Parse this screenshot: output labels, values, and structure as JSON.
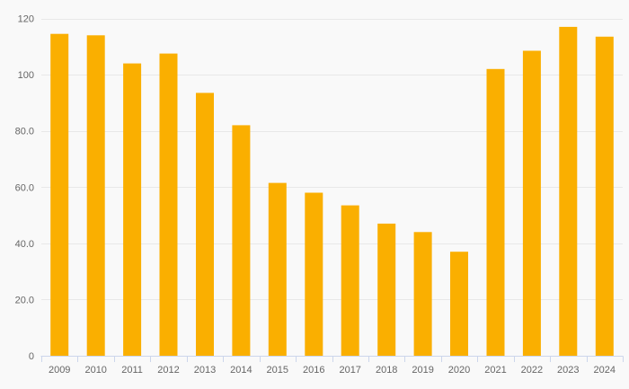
{
  "chart_data": {
    "type": "bar",
    "title": "",
    "xlabel": "",
    "ylabel": "",
    "categories": [
      "2009",
      "2010",
      "2011",
      "2012",
      "2013",
      "2014",
      "2015",
      "2016",
      "2017",
      "2018",
      "2019",
      "2020",
      "2021",
      "2022",
      "2023",
      "2024"
    ],
    "values": [
      114.5,
      114,
      104,
      107.5,
      93.5,
      82,
      61.5,
      58,
      53.5,
      47,
      44,
      37,
      102,
      108.5,
      117,
      113.5
    ],
    "ylim": [
      0,
      120
    ],
    "yticks": [
      {
        "value": 0,
        "label": "0"
      },
      {
        "value": 20,
        "label": "20.0"
      },
      {
        "value": 40,
        "label": "40.0"
      },
      {
        "value": 60,
        "label": "60.0"
      },
      {
        "value": 80,
        "label": "80.0"
      },
      {
        "value": 100,
        "label": "100"
      },
      {
        "value": 120,
        "label": "120"
      }
    ],
    "grid": true,
    "legend": false,
    "legend_position": "none",
    "colors": {
      "bar": "#FAAF00",
      "background": "#f9f9f9",
      "gridline": "#e8e8e8",
      "axis_line": "#ccd6eb",
      "label": "#666666"
    }
  }
}
